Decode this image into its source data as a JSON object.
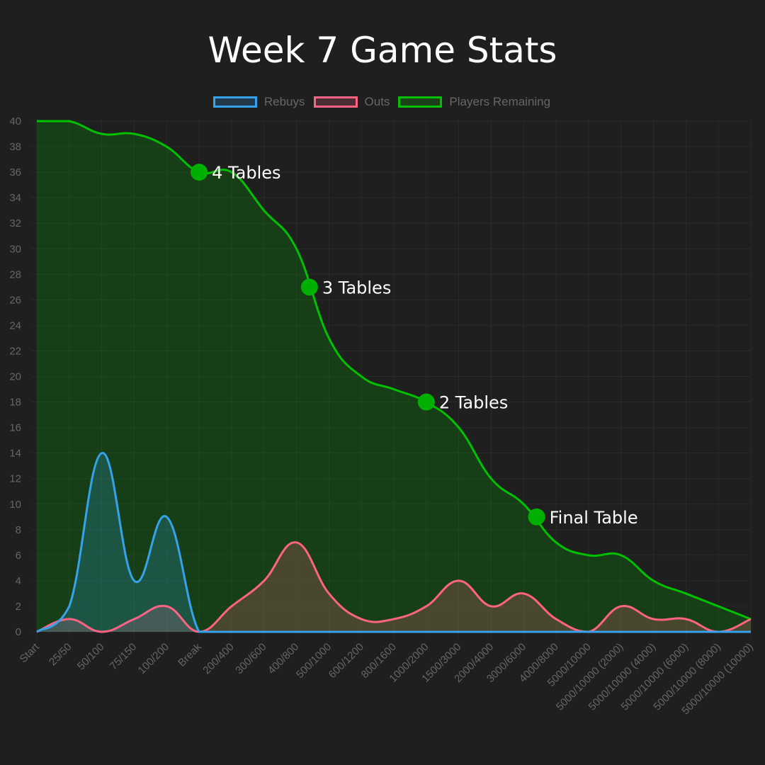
{
  "chart_data": {
    "type": "line",
    "title": "Week 7 Game Stats",
    "xlabel": "",
    "ylabel": "",
    "ylim": [
      0,
      40
    ],
    "ytick_step": 2,
    "grid": true,
    "legend_position": "top",
    "categories": [
      "Start",
      "25/50",
      "50/100",
      "75/150",
      "100/200",
      "Break",
      "200/400",
      "300/600",
      "400/800",
      "500/1000",
      "600/1200",
      "800/1600",
      "1000/2000",
      "1500/3000",
      "2000/4000",
      "3000/6000",
      "4000/8000",
      "5000/10000",
      "5000/10000 (2000)",
      "5000/10000 (4000)",
      "5000/10000 (6000)",
      "5000/10000 (8000)",
      "5000/10000 (10000)"
    ],
    "series": [
      {
        "name": "Rebuys",
        "color": "#36a2eb",
        "fill": "rgba(54,162,235,0.22)",
        "values": [
          0,
          2,
          14,
          4,
          9,
          0,
          0,
          0,
          0,
          0,
          0,
          0,
          0,
          0,
          0,
          0,
          0,
          0,
          0,
          0,
          0,
          0,
          0
        ]
      },
      {
        "name": "Outs",
        "color": "#ff6384",
        "fill": "rgba(255,99,132,0.22)",
        "values": [
          0,
          1,
          0,
          1,
          2,
          0,
          2,
          4,
          7,
          3,
          1,
          1,
          2,
          4,
          2,
          3,
          1,
          0,
          2,
          1,
          1,
          0,
          1
        ]
      },
      {
        "name": "Players Remaining",
        "color": "#00c000",
        "fill": "rgba(0,160,0,0.25)",
        "values": [
          40,
          40,
          39,
          39,
          38,
          36,
          36,
          33,
          30,
          23,
          20,
          19,
          18,
          16,
          12,
          10,
          7,
          6,
          6,
          4,
          3,
          2,
          1
        ]
      }
    ],
    "annotations": [
      {
        "label": "4 Tables",
        "x": 5,
        "y": 36
      },
      {
        "label": "3 Tables",
        "x": 8.4,
        "y": 27
      },
      {
        "label": "2 Tables",
        "x": 12,
        "y": 18
      },
      {
        "label": "Final Table",
        "x": 15.4,
        "y": 9
      }
    ]
  }
}
